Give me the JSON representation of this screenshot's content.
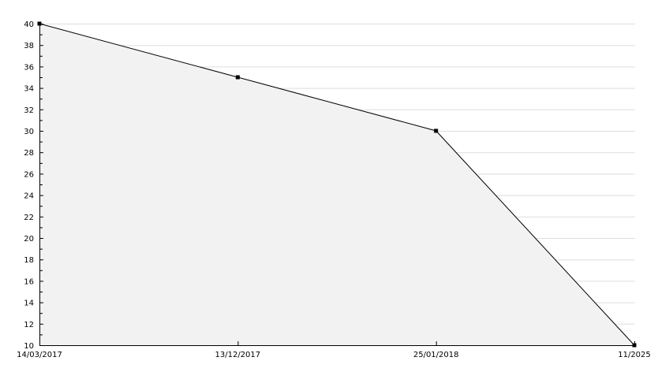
{
  "chart_data": {
    "type": "area",
    "title": "",
    "xlabel": "",
    "ylabel": "",
    "categories": [
      "14/03/2017",
      "13/12/2017",
      "25/01/2018",
      "11/2025"
    ],
    "values": [
      40,
      35,
      30,
      10
    ],
    "ylim": [
      10,
      40
    ],
    "yticks": [
      10,
      12,
      14,
      16,
      18,
      20,
      22,
      24,
      26,
      28,
      30,
      32,
      34,
      36,
      38,
      40
    ],
    "grid": true,
    "legend": "none",
    "colors": {
      "fill": "#f2f2f2",
      "line": "#000000",
      "grid": "#dddddd"
    }
  }
}
